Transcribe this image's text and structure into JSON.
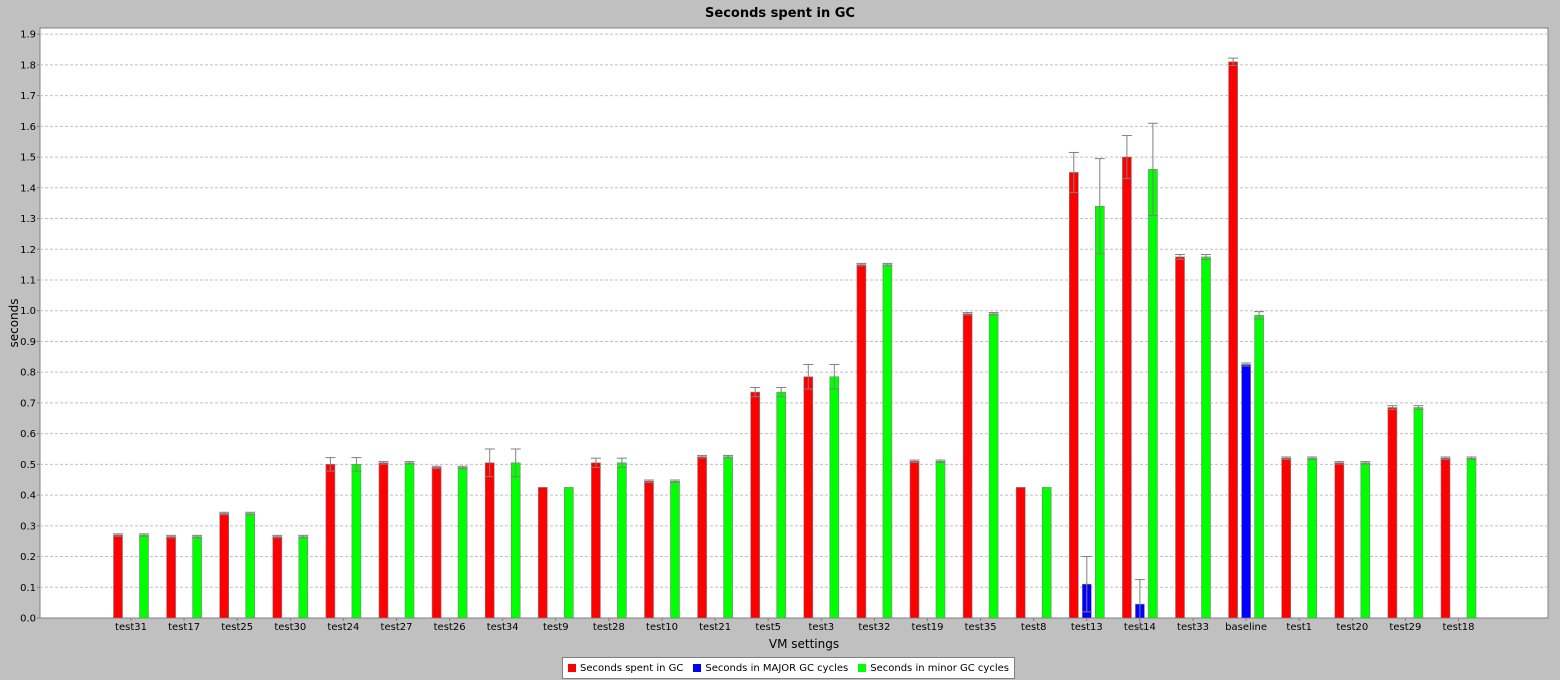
{
  "chart_data": {
    "type": "bar",
    "title": "Seconds spent in GC",
    "xlabel": "VM settings",
    "ylabel": "seconds",
    "ylim": [
      0,
      1.92
    ],
    "yticks": [
      "0.0",
      "0.1",
      "0.2",
      "0.3",
      "0.4",
      "0.5",
      "0.6",
      "0.7",
      "0.8",
      "0.9",
      "1.0",
      "1.1",
      "1.2",
      "1.3",
      "1.4",
      "1.5",
      "1.6",
      "1.7",
      "1.8",
      "1.9"
    ],
    "grid": true,
    "legend_position": "bottom-center",
    "categories": [
      "test31",
      "test17",
      "test25",
      "test30",
      "test24",
      "test27",
      "test26",
      "test34",
      "test9",
      "test28",
      "test10",
      "test21",
      "test5",
      "test3",
      "test32",
      "test19",
      "test35",
      "test8",
      "test13",
      "test14",
      "test33",
      "baseline",
      "test1",
      "test20",
      "test29",
      "test18"
    ],
    "series": [
      {
        "name": "Seconds spent in GC",
        "color": "#ff0000",
        "values": [
          0.27,
          0.265,
          0.34,
          0.265,
          0.5,
          0.505,
          0.49,
          0.505,
          0.425,
          0.505,
          0.445,
          0.525,
          0.735,
          0.785,
          1.15,
          0.51,
          0.99,
          0.425,
          1.45,
          1.5,
          1.175,
          1.81,
          0.52,
          0.505,
          0.685,
          0.52
        ],
        "errors": [
          0.004,
          0.004,
          0.004,
          0.004,
          0.022,
          0.004,
          0.004,
          0.045,
          0.0,
          0.015,
          0.004,
          0.004,
          0.015,
          0.04,
          0.004,
          0.004,
          0.004,
          0.0,
          0.065,
          0.07,
          0.008,
          0.012,
          0.004,
          0.004,
          0.006,
          0.004
        ]
      },
      {
        "name": "Seconds in MAJOR GC cycles",
        "color": "#0000ff",
        "values": [
          0,
          0,
          0,
          0,
          0,
          0,
          0,
          0,
          0,
          0,
          0,
          0,
          0,
          0,
          0,
          0,
          0,
          0,
          0.11,
          0.045,
          0,
          0.825,
          0,
          0,
          0,
          0
        ],
        "errors": [
          0,
          0,
          0,
          0,
          0,
          0,
          0,
          0,
          0,
          0,
          0,
          0,
          0,
          0,
          0,
          0,
          0,
          0,
          0.09,
          0.08,
          0,
          0.005,
          0,
          0,
          0,
          0
        ]
      },
      {
        "name": "Seconds in minor GC cycles",
        "color": "#00ff00",
        "values": [
          0.27,
          0.265,
          0.34,
          0.265,
          0.5,
          0.505,
          0.49,
          0.505,
          0.425,
          0.505,
          0.445,
          0.525,
          0.735,
          0.785,
          1.15,
          0.51,
          0.99,
          0.425,
          1.34,
          1.46,
          1.175,
          0.985,
          0.52,
          0.505,
          0.685,
          0.52
        ],
        "errors": [
          0.004,
          0.004,
          0.004,
          0.004,
          0.022,
          0.004,
          0.004,
          0.045,
          0.0,
          0.015,
          0.004,
          0.004,
          0.015,
          0.04,
          0.004,
          0.004,
          0.004,
          0.0,
          0.155,
          0.15,
          0.008,
          0.012,
          0.004,
          0.004,
          0.006,
          0.004
        ]
      }
    ]
  }
}
